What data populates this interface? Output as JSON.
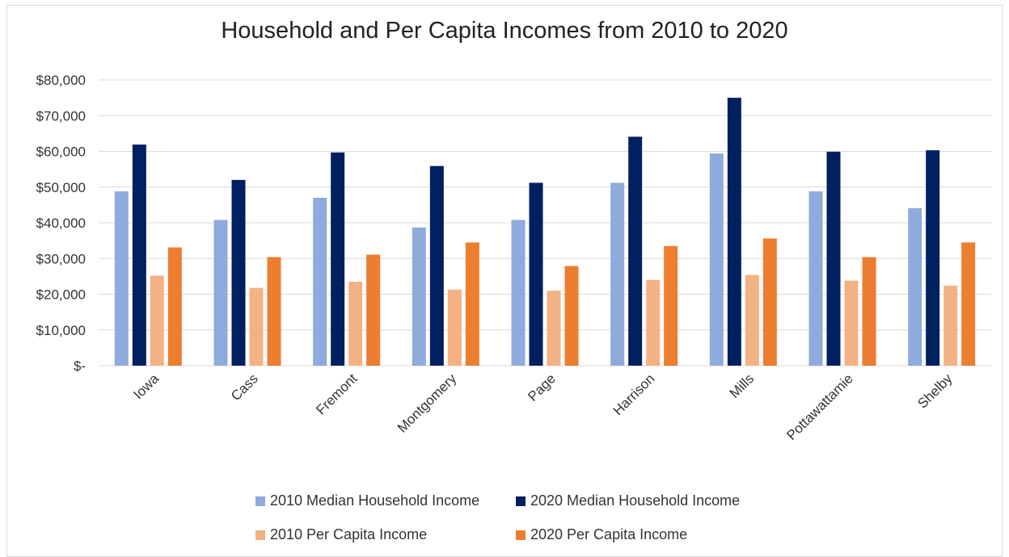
{
  "chart_data": {
    "type": "bar",
    "title": "Household and Per Capita Incomes from 2010 to 2020",
    "categories": [
      "Iowa",
      "Cass",
      "Fremont",
      "Montgomery",
      "Page",
      "Harrison",
      "Mills",
      "Pottawattamie",
      "Shelby"
    ],
    "series": [
      {
        "name": "2010 Median Household Income",
        "color": "#8faadc",
        "values": [
          48800,
          40800,
          47000,
          38700,
          40800,
          51200,
          59400,
          48800,
          44100
        ]
      },
      {
        "name": "2020 Median Household Income",
        "color": "#002060",
        "values": [
          61900,
          52000,
          59700,
          55900,
          51200,
          64100,
          75000,
          59900,
          60300
        ]
      },
      {
        "name": "2010 Per Capita Income",
        "color": "#f4b183",
        "values": [
          25200,
          21800,
          23500,
          21300,
          21000,
          24000,
          25400,
          23800,
          22400
        ]
      },
      {
        "name": "2020 Per Capita Income",
        "color": "#ed7d31",
        "values": [
          33100,
          30400,
          31100,
          34500,
          27900,
          33500,
          35600,
          30400,
          34500
        ]
      }
    ],
    "yticks": [
      "$-",
      "$10,000",
      "$20,000",
      "$30,000",
      "$40,000",
      "$50,000",
      "$60,000",
      "$70,000",
      "$80,000"
    ],
    "ylim": [
      0,
      80000
    ],
    "grid": true,
    "legend_position": "bottom"
  }
}
